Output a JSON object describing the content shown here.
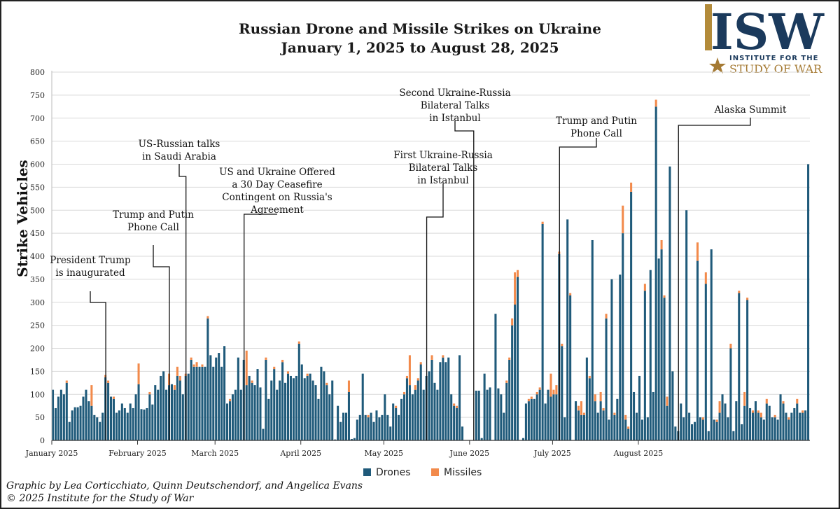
{
  "header": {
    "title_line1": "Russian Drone and Missile Strikes on Ukraine",
    "title_line2": "January 1, 2025 to August 28, 2025"
  },
  "logo": {
    "letters": "ISW",
    "line1": "INSTITUTE FOR THE",
    "line2": "STUDY OF WAR"
  },
  "credits": {
    "line1": "Graphic by Lea Corticchiato, Quinn Deutschendorf, and Angelica Evans",
    "line2": "© 2025 Institute for the Study of War"
  },
  "colors": {
    "drones": "#1f5a7a",
    "missiles": "#f28a4b",
    "grid": "#d9d9d9",
    "axis": "#333333"
  },
  "chart_data": {
    "type": "bar",
    "stacked": true,
    "title": "Russian Drone and Missile Strikes on Ukraine January 1, 2025 to August 28, 2025",
    "ylabel": "Strike Vehicles",
    "ylim": [
      0,
      800
    ],
    "yticks": [
      0,
      50,
      100,
      150,
      200,
      250,
      300,
      350,
      400,
      450,
      500,
      550,
      600,
      650,
      700,
      750,
      800
    ],
    "grid": true,
    "legend_position": "bottom",
    "x_start": "2025-01-01",
    "x_end": "2025-08-28",
    "month_labels": [
      {
        "date": "2025-01-01",
        "label": "January 2025"
      },
      {
        "date": "2025-02-01",
        "label": "February 2025"
      },
      {
        "date": "2025-03-01",
        "label": "March 2025"
      },
      {
        "date": "2025-04-01",
        "label": "April 2025"
      },
      {
        "date": "2025-05-01",
        "label": "May 2025"
      },
      {
        "date": "2025-06-01",
        "label": "June 2025"
      },
      {
        "date": "2025-07-01",
        "label": "July 2025"
      },
      {
        "date": "2025-08-01",
        "label": "August 2025"
      }
    ],
    "series": [
      {
        "name": "Drones",
        "values": [
          110,
          70,
          95,
          110,
          100,
          125,
          40,
          65,
          72,
          72,
          75,
          95,
          110,
          85,
          75,
          55,
          50,
          40,
          60,
          137,
          125,
          95,
          90,
          60,
          65,
          80,
          70,
          60,
          80,
          70,
          100,
          122,
          68,
          67,
          70,
          100,
          78,
          120,
          110,
          140,
          150,
          110,
          120,
          122,
          110,
          140,
          130,
          100,
          140,
          145,
          175,
          160,
          160,
          160,
          160,
          160,
          265,
          185,
          160,
          180,
          190,
          160,
          205,
          80,
          85,
          100,
          110,
          180,
          110,
          175,
          120,
          140,
          125,
          120,
          155,
          115,
          25,
          175,
          90,
          130,
          155,
          110,
          130,
          170,
          125,
          145,
          140,
          135,
          140,
          210,
          165,
          135,
          140,
          145,
          130,
          120,
          90,
          160,
          150,
          120,
          100,
          130,
          2,
          75,
          40,
          60,
          60,
          105,
          3,
          5,
          45,
          55,
          145,
          55,
          50,
          60,
          40,
          65,
          50,
          55,
          100,
          55,
          30,
          80,
          70,
          55,
          90,
          100,
          135,
          120,
          100,
          110,
          130,
          165,
          110,
          140,
          150,
          175,
          125,
          110,
          170,
          180,
          170,
          180,
          100,
          75,
          70,
          185,
          30,
          0,
          0,
          0,
          0,
          108,
          108,
          5,
          145,
          110,
          115,
          0,
          275,
          113,
          100,
          60,
          125,
          175,
          250,
          295,
          355,
          0,
          5,
          80,
          85,
          90,
          90,
          100,
          110,
          470,
          80,
          110,
          95,
          100,
          100,
          405,
          205,
          50,
          480,
          315,
          0,
          85,
          65,
          55,
          55,
          180,
          135,
          435,
          85,
          60,
          85,
          65,
          265,
          45,
          350,
          55,
          90,
          360,
          450,
          45,
          25,
          540,
          105,
          60,
          140,
          45,
          325,
          50,
          370,
          105,
          725,
          395,
          415,
          310,
          75,
          595,
          150,
          30,
          20,
          80,
          50,
          500,
          60,
          35,
          40,
          390,
          50,
          45,
          340,
          20,
          415,
          45,
          40,
          60,
          100,
          80,
          50,
          200,
          20,
          85,
          320,
          35,
          75,
          305,
          70,
          60,
          85,
          60,
          50,
          45,
          80,
          75,
          50,
          50,
          45,
          100,
          80,
          60,
          45,
          60,
          70,
          80,
          60,
          60,
          65,
          600
        ],
        "note": "Estimated per-day drone counts read from stacked bar heights"
      },
      {
        "name": "Missiles",
        "values": [
          0,
          0,
          0,
          0,
          0,
          5,
          0,
          0,
          0,
          0,
          0,
          0,
          0,
          0,
          45,
          0,
          0,
          0,
          0,
          5,
          5,
          0,
          5,
          0,
          0,
          0,
          0,
          0,
          0,
          0,
          0,
          45,
          0,
          0,
          0,
          5,
          0,
          0,
          0,
          0,
          0,
          0,
          25,
          0,
          10,
          20,
          10,
          0,
          5,
          0,
          5,
          5,
          10,
          0,
          5,
          0,
          5,
          0,
          0,
          0,
          0,
          0,
          0,
          0,
          5,
          0,
          0,
          0,
          0,
          0,
          75,
          0,
          5,
          0,
          0,
          0,
          0,
          5,
          0,
          0,
          5,
          0,
          0,
          5,
          0,
          5,
          0,
          0,
          0,
          5,
          0,
          0,
          5,
          0,
          0,
          0,
          0,
          0,
          0,
          5,
          0,
          0,
          0,
          0,
          0,
          0,
          0,
          25,
          0,
          0,
          0,
          0,
          0,
          0,
          5,
          0,
          0,
          0,
          0,
          0,
          0,
          0,
          0,
          0,
          5,
          0,
          0,
          5,
          5,
          65,
          0,
          10,
          5,
          5,
          0,
          0,
          0,
          10,
          0,
          0,
          0,
          5,
          0,
          0,
          0,
          5,
          5,
          0,
          0,
          0,
          0,
          0,
          0,
          0,
          0,
          0,
          0,
          0,
          0,
          0,
          0,
          0,
          0,
          0,
          5,
          5,
          15,
          70,
          15,
          0,
          0,
          0,
          5,
          5,
          0,
          5,
          5,
          5,
          0,
          0,
          50,
          10,
          20,
          5,
          5,
          0,
          0,
          5,
          0,
          0,
          10,
          30,
          5,
          0,
          5,
          0,
          15,
          0,
          20,
          5,
          10,
          0,
          0,
          5,
          0,
          0,
          60,
          10,
          5,
          20,
          0,
          0,
          0,
          0,
          15,
          0,
          0,
          0,
          15,
          0,
          20,
          5,
          20,
          0,
          0,
          0,
          0,
          0,
          0,
          0,
          0,
          0,
          0,
          40,
          0,
          5,
          25,
          0,
          0,
          0,
          5,
          25,
          0,
          0,
          0,
          10,
          0,
          0,
          5,
          0,
          30,
          5,
          0,
          5,
          0,
          5,
          10,
          0,
          10,
          0,
          0,
          5,
          0,
          0,
          5,
          0,
          5,
          0,
          0,
          10,
          0,
          5,
          0,
          0,
          0,
          5,
          0,
          5,
          40,
          10,
          0,
          0,
          10,
          0,
          10,
          0,
          30
        ],
        "note": "Estimated per-day missile counts read from stacked bar heights"
      }
    ],
    "annotations": [
      {
        "text": "President Trump is inaugurated",
        "lines": [
          "President Trump",
          "is inaugurated"
        ],
        "date": "2025-01-20"
      },
      {
        "text": "Trump and Putin Phone Call",
        "lines": [
          "Trump and Putin",
          "Phone Call"
        ],
        "date": "2025-02-12"
      },
      {
        "text": "US-Russian talks in Saudi Arabia",
        "lines": [
          "US-Russian talks",
          "in Saudi Arabia"
        ],
        "date": "2025-02-18"
      },
      {
        "text": "US and Ukraine Offered a 30 Day Ceasefire Contingent on Russia's Agreement",
        "lines": [
          "US and Ukraine Offered",
          "a 30 Day Ceasefire",
          "Contingent on Russia's",
          "Agreement"
        ],
        "date": "2025-03-11"
      },
      {
        "text": "First Ukraine-Russia Bilateral Talks in Istanbul",
        "lines": [
          "First Ukraine-Russia",
          "Bilateral Talks",
          "in Istanbul"
        ],
        "date": "2025-05-16"
      },
      {
        "text": "Second Ukraine-Russia Bilateral Talks in Istanbul",
        "lines": [
          "Second Ukraine-Russia",
          "Bilateral Talks",
          "in Istanbul"
        ],
        "date": "2025-06-02"
      },
      {
        "text": "Trump and Putin Phone Call",
        "lines": [
          "Trump and Putin",
          "Phone Call"
        ],
        "date": "2025-07-03"
      },
      {
        "text": "Alaska Summit",
        "lines": [
          "Alaska Summit"
        ],
        "date": "2025-08-15"
      }
    ]
  }
}
